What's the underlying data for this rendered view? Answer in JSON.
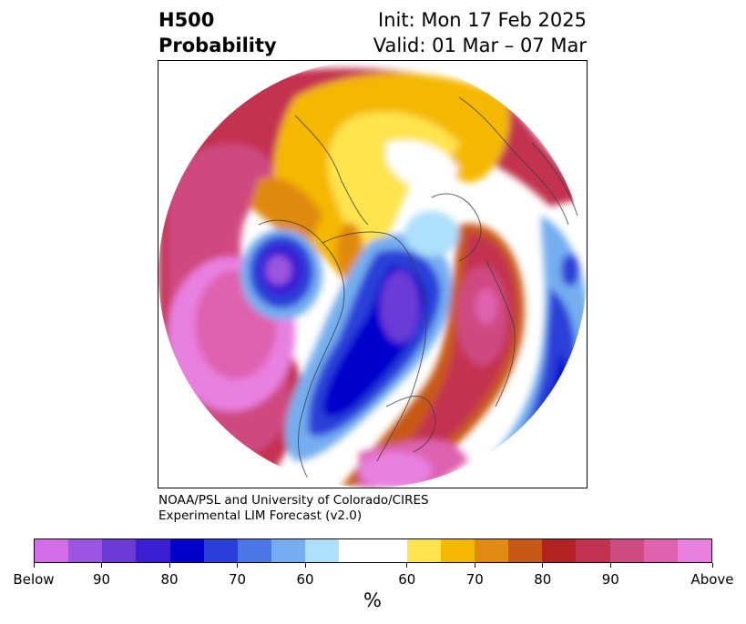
{
  "header": {
    "left_line1": "H500",
    "left_line2": "Probability",
    "right_line1": "Init: Mon 17 Feb 2025",
    "right_line2": "Valid: 01 Mar – 07 Mar"
  },
  "credit": {
    "line1": "NOAA/PSL and University of Colorado/CIRES",
    "line2": "Experimental LIM Forecast (v2.0)"
  },
  "colorbar": {
    "unit": "%",
    "tick_labels": [
      "Below",
      "90",
      "80",
      "70",
      "60",
      "60",
      "70",
      "80",
      "90",
      "Above"
    ],
    "colors": [
      "#d46ee8",
      "#9b55e0",
      "#6b3ad6",
      "#3a1fd2",
      "#0000cc",
      "#2a3fd8",
      "#4b78e6",
      "#74aef0",
      "#ade0fb",
      "#ffffff",
      "#ffe44d",
      "#f5b800",
      "#e08a10",
      "#c85818",
      "#b22222",
      "#c33250",
      "#cf4a80",
      "#de62b0",
      "#e880e0"
    ],
    "white_band_weight": 2
  }
}
